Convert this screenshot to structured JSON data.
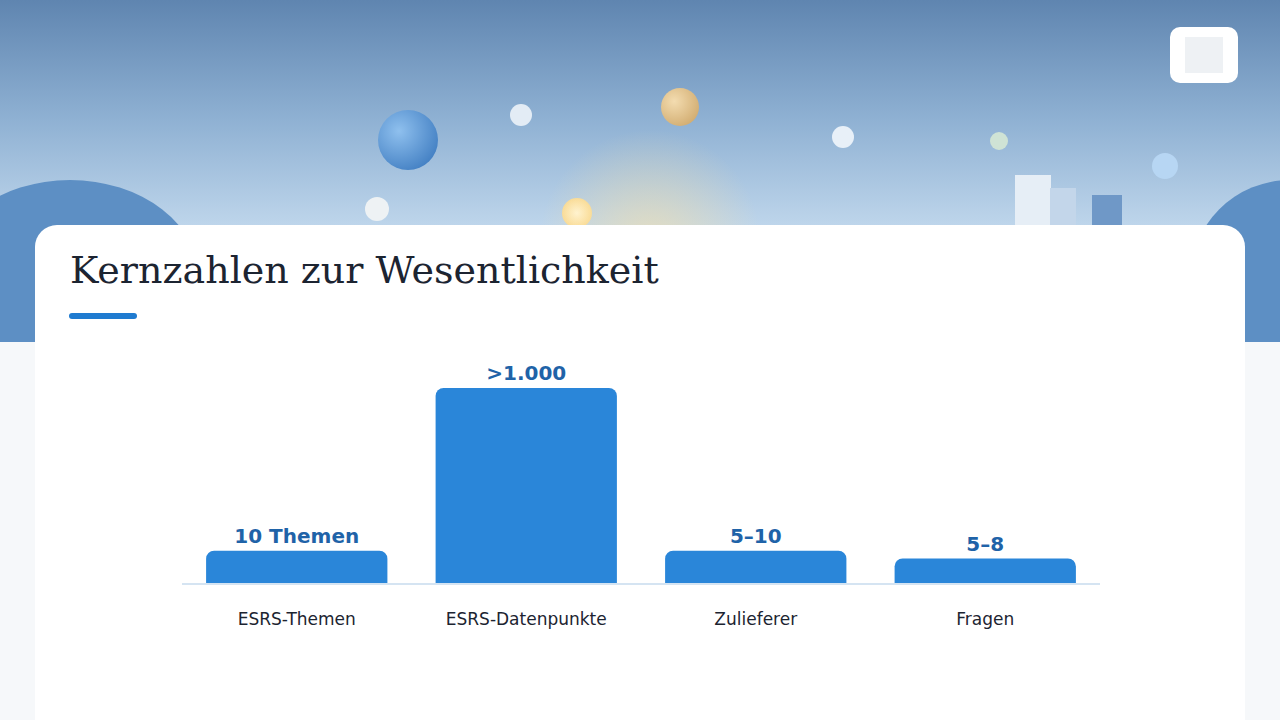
{
  "chart_data": {
    "type": "bar",
    "title": "Kernzahlen zur Wesentlichkeit",
    "categories": [
      "ESRS-Themen",
      "ESRS-Datenpunkte",
      "Zulieferer",
      "Fragen"
    ],
    "values": [
      10,
      1000,
      10,
      8
    ],
    "value_labels": [
      "10 Themen",
      ">1.000",
      "5–10",
      "5–8"
    ],
    "color": "#2a86d9",
    "ylim": [
      4,
      1000
    ],
    "log": "y",
    "data_labels": true,
    "tick_labels": "x",
    "grid": false
  }
}
